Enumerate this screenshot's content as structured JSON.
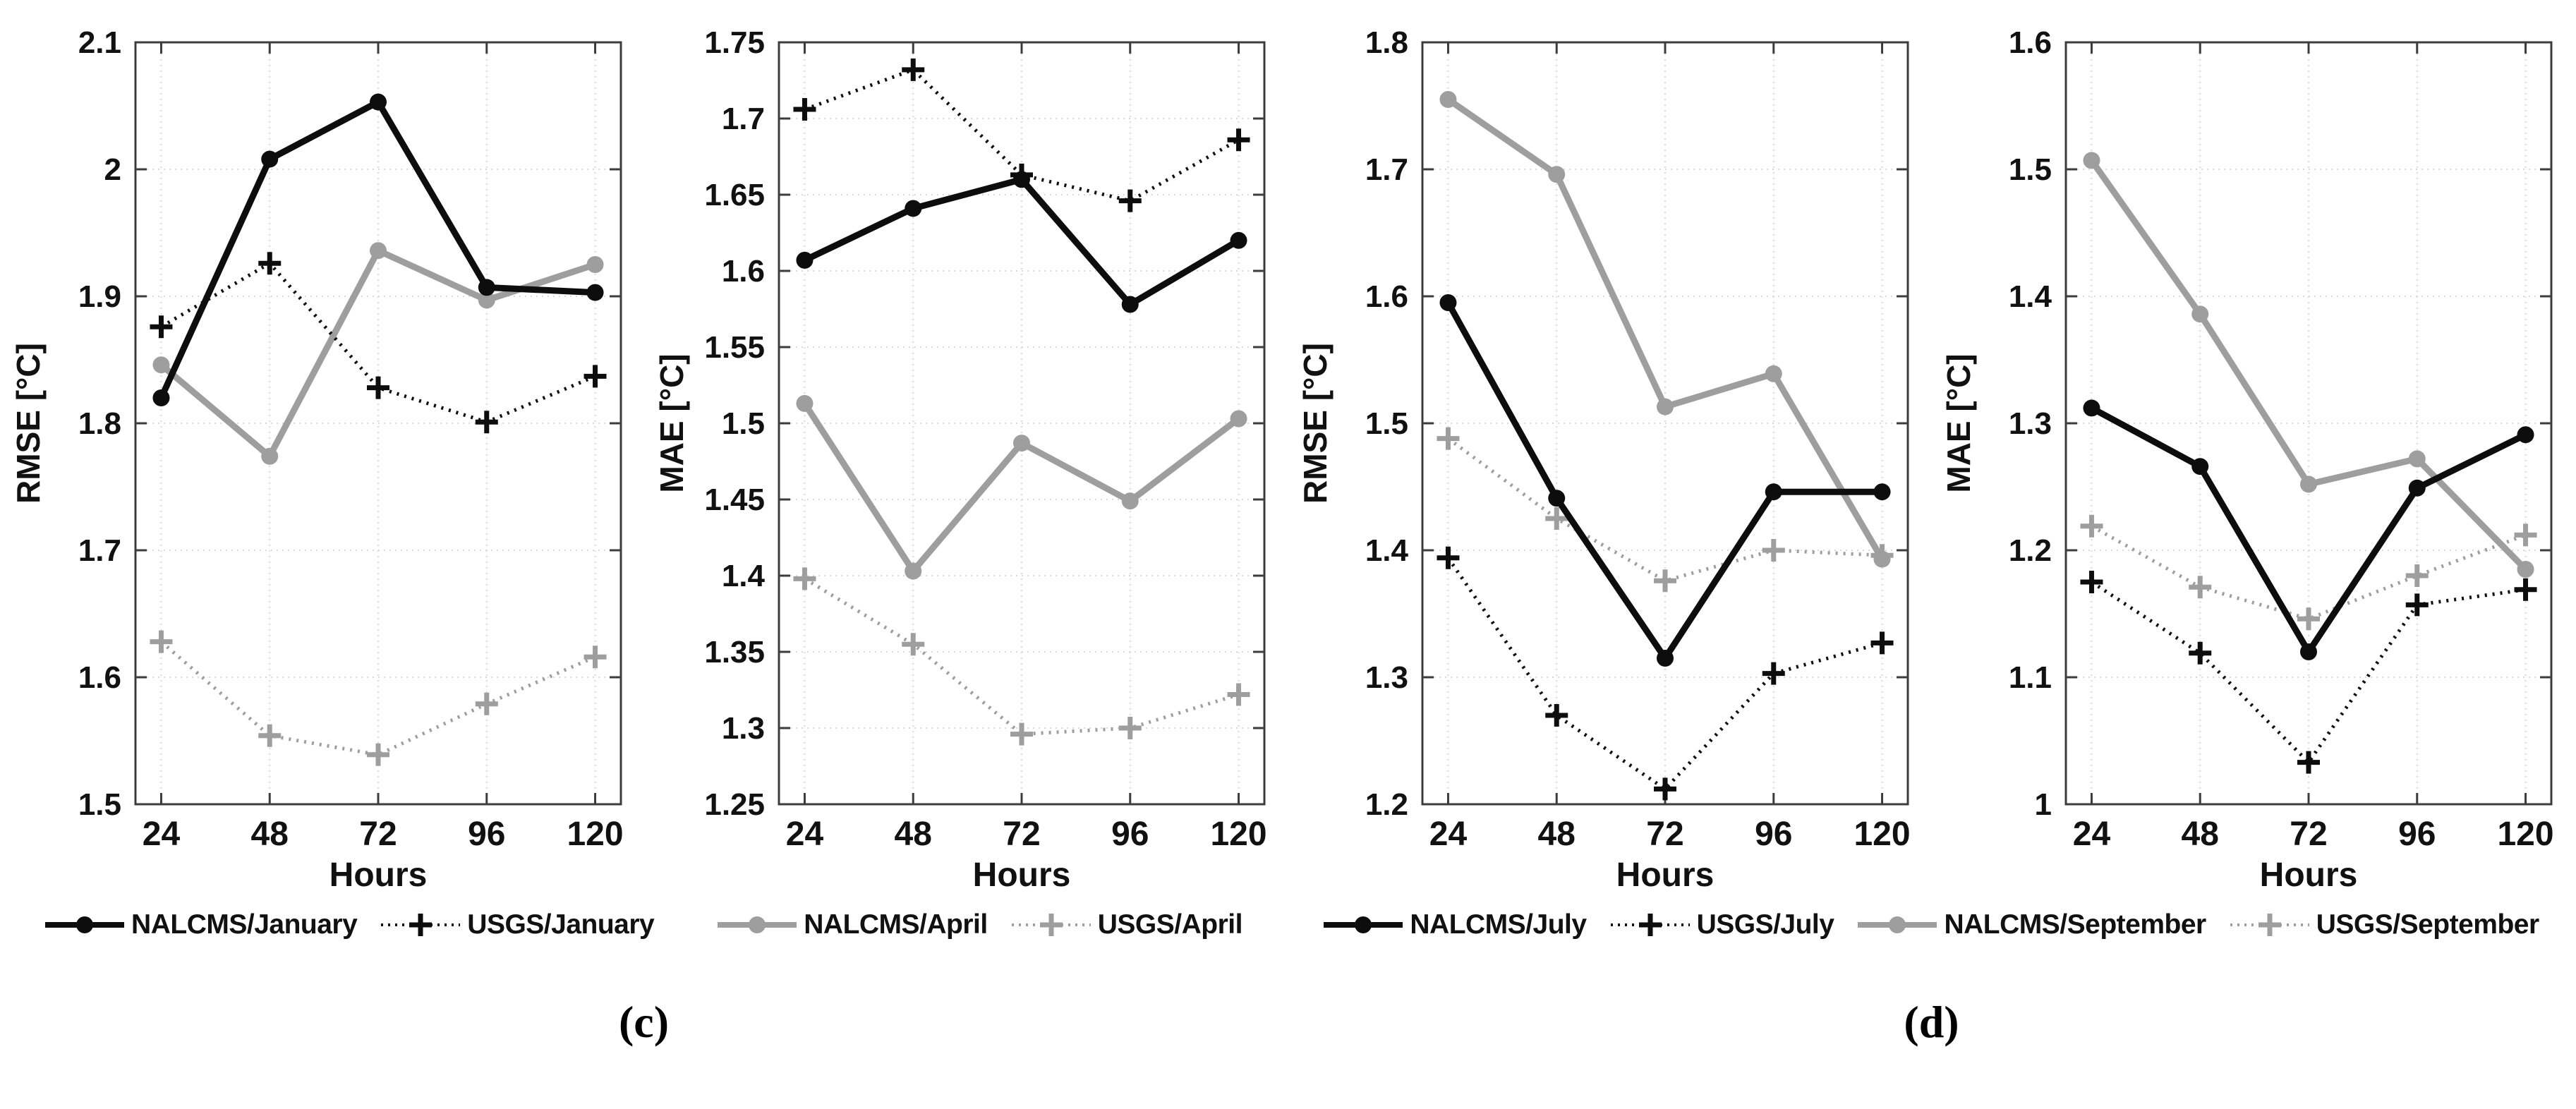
{
  "figure": {
    "x_axis_label": "Hours",
    "x_tick_labels": [
      "24",
      "48",
      "72",
      "96",
      "120"
    ],
    "captions": [
      {
        "label": "(c)"
      },
      {
        "label": "(d)"
      }
    ],
    "colors": {
      "black_series": "#0d0d0d",
      "gray_series": "#9e9e9e",
      "grid": "#d9d9d9",
      "axis_box": "#3d3d3d",
      "text": "#111111"
    },
    "legend_rows": [
      {
        "placement": "under-panel-0",
        "items": [
          {
            "label": "NALCMS/January",
            "color": "black_series",
            "line": "solid",
            "marker": "circle"
          },
          {
            "label": "USGS/January",
            "color": "black_series",
            "line": "dotted",
            "marker": "plus"
          }
        ]
      },
      {
        "placement": "under-panel-1",
        "items": [
          {
            "label": "NALCMS/April",
            "color": "gray_series",
            "line": "solid",
            "marker": "circle"
          },
          {
            "label": "USGS/April",
            "color": "gray_series",
            "line": "dotted",
            "marker": "plus"
          }
        ]
      },
      {
        "placement": "under-panels-2-3",
        "items": [
          {
            "label": "NALCMS/July",
            "color": "black_series",
            "line": "solid",
            "marker": "circle"
          },
          {
            "label": "USGS/July",
            "color": "black_series",
            "line": "dotted",
            "marker": "plus"
          },
          {
            "label": "NALCMS/September",
            "color": "gray_series",
            "line": "solid",
            "marker": "circle"
          },
          {
            "label": "USGS/September",
            "color": "gray_series",
            "line": "dotted",
            "marker": "plus"
          }
        ]
      }
    ]
  },
  "chart_data": [
    {
      "type": "line",
      "panel_caption_group": "(c)",
      "xlabel": "Hours",
      "ylabel": "RMSE [°C]",
      "x": [
        24,
        48,
        72,
        96,
        120
      ],
      "ylim": [
        1.5,
        2.1
      ],
      "ytick_labels": [
        "1.5",
        "1.6",
        "1.7",
        "1.8",
        "1.9",
        "2",
        "2.1"
      ],
      "grid": true,
      "series": [
        {
          "name": "NALCMS/January",
          "color": "black_series",
          "line": "solid",
          "marker": "circle",
          "values": [
            1.82,
            2.008,
            2.053,
            1.907,
            1.903
          ]
        },
        {
          "name": "USGS/January",
          "color": "black_series",
          "line": "dotted",
          "marker": "plus",
          "values": [
            1.876,
            1.926,
            1.828,
            1.801,
            1.837
          ]
        },
        {
          "name": "NALCMS/April",
          "color": "gray_series",
          "line": "solid",
          "marker": "circle",
          "values": [
            1.846,
            1.774,
            1.936,
            1.897,
            1.925
          ]
        },
        {
          "name": "USGS/April",
          "color": "gray_series",
          "line": "dotted",
          "marker": "plus",
          "values": [
            1.628,
            1.554,
            1.539,
            1.579,
            1.616
          ]
        }
      ]
    },
    {
      "type": "line",
      "panel_caption_group": "(c)",
      "xlabel": "Hours",
      "ylabel": "MAE [°C]",
      "x": [
        24,
        48,
        72,
        96,
        120
      ],
      "ylim": [
        1.25,
        1.75
      ],
      "ytick_labels": [
        "1.25",
        "1.3",
        "1.35",
        "1.4",
        "1.45",
        "1.5",
        "1.55",
        "1.6",
        "1.65",
        "1.7",
        "1.75"
      ],
      "grid": true,
      "series": [
        {
          "name": "NALCMS/January",
          "color": "black_series",
          "line": "solid",
          "marker": "circle",
          "values": [
            1.607,
            1.641,
            1.66,
            1.578,
            1.62
          ]
        },
        {
          "name": "USGS/January",
          "color": "black_series",
          "line": "dotted",
          "marker": "plus",
          "values": [
            1.706,
            1.732,
            1.663,
            1.646,
            1.686
          ]
        },
        {
          "name": "NALCMS/April",
          "color": "gray_series",
          "line": "solid",
          "marker": "circle",
          "values": [
            1.513,
            1.403,
            1.487,
            1.449,
            1.503
          ]
        },
        {
          "name": "USGS/April",
          "color": "gray_series",
          "line": "dotted",
          "marker": "plus",
          "values": [
            1.398,
            1.355,
            1.296,
            1.3,
            1.322
          ]
        }
      ]
    },
    {
      "type": "line",
      "panel_caption_group": "(d)",
      "xlabel": "Hours",
      "ylabel": "RMSE [°C]",
      "x": [
        24,
        48,
        72,
        96,
        120
      ],
      "ylim": [
        1.2,
        1.8
      ],
      "ytick_labels": [
        "1.2",
        "1.3",
        "1.4",
        "1.5",
        "1.6",
        "1.7",
        "1.8"
      ],
      "grid": true,
      "series": [
        {
          "name": "NALCMS/July",
          "color": "black_series",
          "line": "solid",
          "marker": "circle",
          "values": [
            1.595,
            1.441,
            1.315,
            1.446,
            1.446
          ]
        },
        {
          "name": "USGS/July",
          "color": "black_series",
          "line": "dotted",
          "marker": "plus",
          "values": [
            1.394,
            1.27,
            1.212,
            1.303,
            1.327
          ]
        },
        {
          "name": "NALCMS/September",
          "color": "gray_series",
          "line": "solid",
          "marker": "circle",
          "values": [
            1.755,
            1.696,
            1.513,
            1.539,
            1.393
          ]
        },
        {
          "name": "USGS/September",
          "color": "gray_series",
          "line": "dotted",
          "marker": "plus",
          "values": [
            1.488,
            1.425,
            1.376,
            1.4,
            1.396
          ]
        }
      ]
    },
    {
      "type": "line",
      "panel_caption_group": "(d)",
      "xlabel": "Hours",
      "ylabel": "MAE [°C]",
      "x": [
        24,
        48,
        72,
        96,
        120
      ],
      "ylim": [
        1.0,
        1.6
      ],
      "ytick_labels": [
        "1",
        "1.1",
        "1.2",
        "1.3",
        "1.4",
        "1.5",
        "1.6"
      ],
      "grid": true,
      "series": [
        {
          "name": "NALCMS/July",
          "color": "black_series",
          "line": "solid",
          "marker": "circle",
          "values": [
            1.312,
            1.266,
            1.12,
            1.249,
            1.291
          ]
        },
        {
          "name": "USGS/July",
          "color": "black_series",
          "line": "dotted",
          "marker": "plus",
          "values": [
            1.175,
            1.119,
            1.033,
            1.157,
            1.169
          ]
        },
        {
          "name": "NALCMS/September",
          "color": "gray_series",
          "line": "solid",
          "marker": "circle",
          "values": [
            1.507,
            1.386,
            1.252,
            1.272,
            1.185
          ]
        },
        {
          "name": "USGS/September",
          "color": "gray_series",
          "line": "dotted",
          "marker": "plus",
          "values": [
            1.219,
            1.171,
            1.146,
            1.18,
            1.212
          ]
        }
      ]
    }
  ]
}
